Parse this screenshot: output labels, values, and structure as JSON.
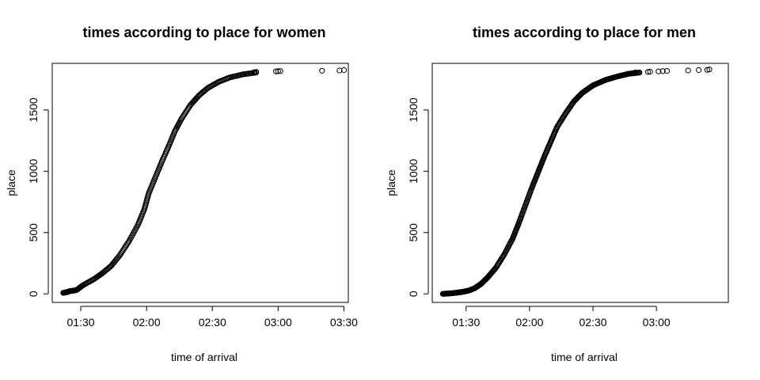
{
  "chart_data": [
    {
      "type": "scatter",
      "title": "times according to place for women",
      "xlabel": "time of arrival",
      "ylabel": "place",
      "x_unit": "minutes",
      "xlim": [
        77,
        212
      ],
      "ylim": [
        -70,
        1880
      ],
      "x_ticks": [
        {
          "value": 90,
          "label": "01:30"
        },
        {
          "value": 120,
          "label": "02:00"
        },
        {
          "value": 150,
          "label": "02:30"
        },
        {
          "value": 180,
          "label": "03:00"
        },
        {
          "value": 210,
          "label": "03:30"
        }
      ],
      "y_ticks": [
        {
          "value": 0,
          "label": "0"
        },
        {
          "value": 500,
          "label": "500"
        },
        {
          "value": 1000,
          "label": "1000"
        },
        {
          "value": 1500,
          "label": "1500"
        }
      ],
      "curve": [
        [
          82,
          8
        ],
        [
          84,
          15
        ],
        [
          85,
          22
        ],
        [
          88,
          30
        ],
        [
          91,
          70
        ],
        [
          96,
          120
        ],
        [
          100,
          170
        ],
        [
          104,
          230
        ],
        [
          108,
          320
        ],
        [
          112,
          430
        ],
        [
          116,
          560
        ],
        [
          119,
          690
        ],
        [
          121,
          820
        ],
        [
          124,
          950
        ],
        [
          127,
          1080
        ],
        [
          130,
          1200
        ],
        [
          133,
          1330
        ],
        [
          136,
          1430
        ],
        [
          140,
          1540
        ],
        [
          144,
          1620
        ],
        [
          148,
          1680
        ],
        [
          153,
          1730
        ],
        [
          158,
          1765
        ],
        [
          164,
          1790
        ],
        [
          170,
          1805
        ]
      ],
      "n_curve_points": 230,
      "extra_points": [
        [
          169,
          1808
        ],
        [
          170,
          1810
        ],
        [
          179,
          1814
        ],
        [
          180,
          1816
        ],
        [
          181,
          1817
        ],
        [
          200,
          1820
        ],
        [
          208,
          1822
        ],
        [
          210,
          1825
        ]
      ]
    },
    {
      "type": "scatter",
      "title": "times according to place for men",
      "xlabel": "time of arrival",
      "ylabel": "place",
      "x_unit": "minutes",
      "xlim": [
        74,
        214
      ],
      "ylim": [
        -70,
        1880
      ],
      "x_ticks": [
        {
          "value": 90,
          "label": "01:30"
        },
        {
          "value": 120,
          "label": "02:00"
        },
        {
          "value": 150,
          "label": "02:30"
        },
        {
          "value": 180,
          "label": "03:00"
        }
      ],
      "y_ticks": [
        {
          "value": 0,
          "label": "0"
        },
        {
          "value": 500,
          "label": "500"
        },
        {
          "value": 1000,
          "label": "1000"
        },
        {
          "value": 1500,
          "label": "1500"
        }
      ],
      "curve": [
        [
          79,
          0
        ],
        [
          82,
          3
        ],
        [
          85,
          8
        ],
        [
          88,
          15
        ],
        [
          91,
          25
        ],
        [
          94,
          45
        ],
        [
          97,
          80
        ],
        [
          100,
          130
        ],
        [
          104,
          210
        ],
        [
          108,
          320
        ],
        [
          112,
          450
        ],
        [
          115,
          580
        ],
        [
          118,
          720
        ],
        [
          121,
          860
        ],
        [
          124,
          990
        ],
        [
          127,
          1120
        ],
        [
          130,
          1240
        ],
        [
          133,
          1360
        ],
        [
          137,
          1470
        ],
        [
          141,
          1570
        ],
        [
          145,
          1640
        ],
        [
          150,
          1700
        ],
        [
          156,
          1745
        ],
        [
          162,
          1775
        ],
        [
          167,
          1795
        ],
        [
          172,
          1805
        ]
      ],
      "n_curve_points": 320,
      "extra_points": [
        [
          170,
          1806
        ],
        [
          176,
          1810
        ],
        [
          177,
          1812
        ],
        [
          181,
          1814
        ],
        [
          183,
          1816
        ],
        [
          185,
          1818
        ],
        [
          195,
          1822
        ],
        [
          200,
          1825
        ],
        [
          204,
          1827
        ],
        [
          205,
          1830
        ]
      ]
    }
  ]
}
